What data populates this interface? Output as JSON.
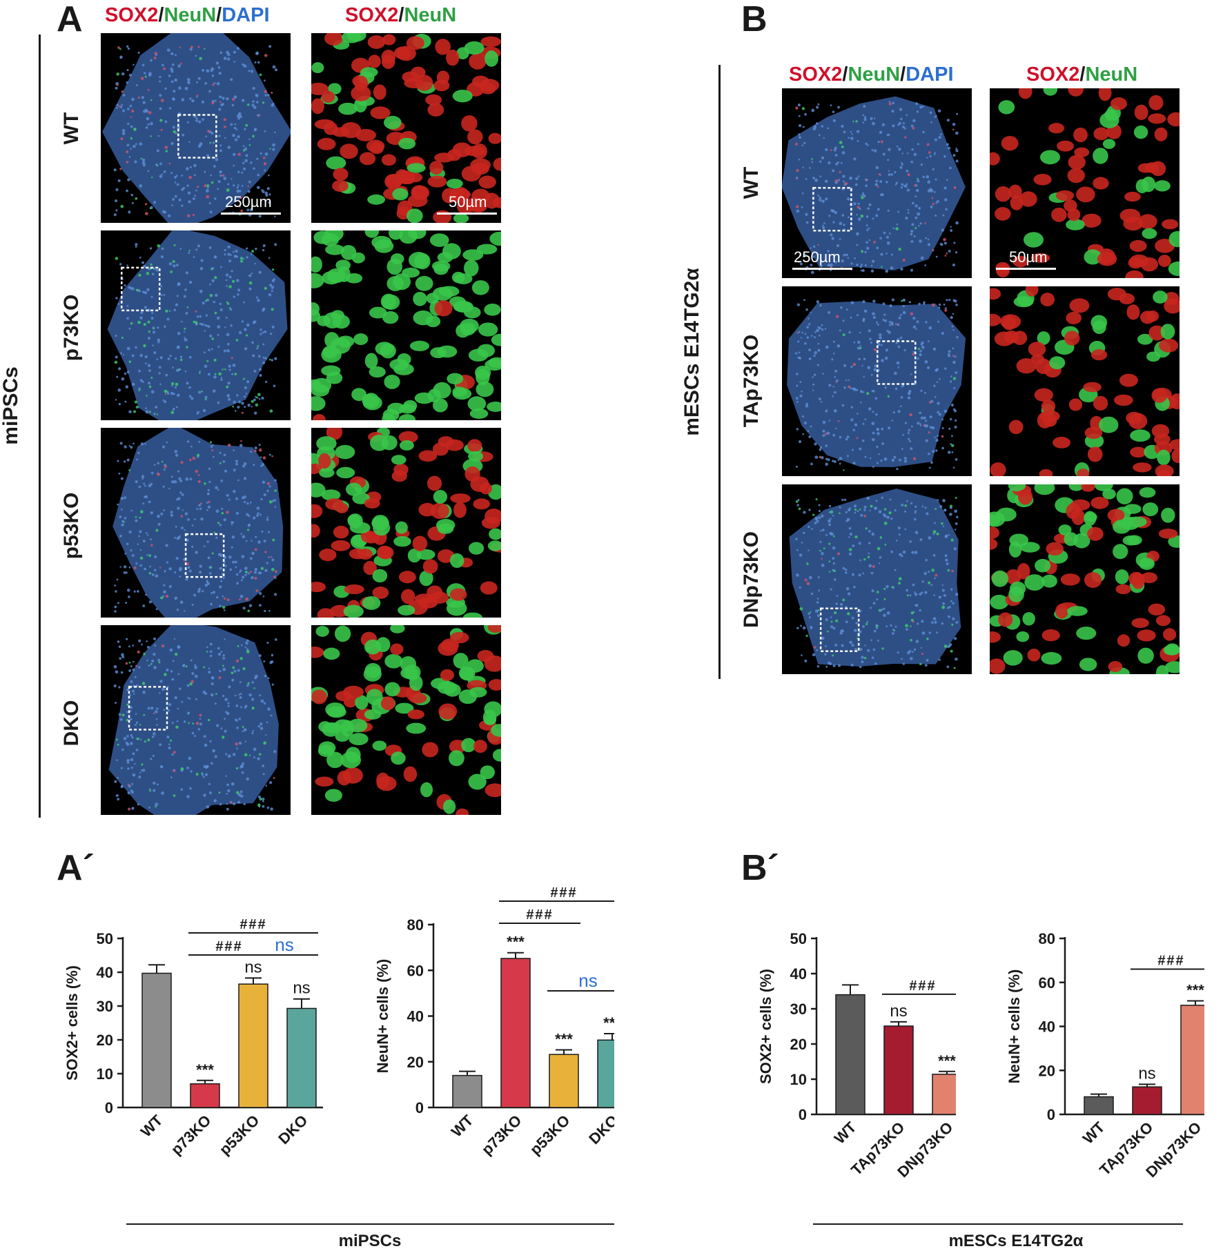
{
  "panelA": {
    "letter": "A",
    "header_left": {
      "sox2": "SOX2",
      "sep1": "/",
      "neun": "NeuN",
      "sep2": "/",
      "dapi": "DAPI"
    },
    "header_right": {
      "sox2": "SOX2",
      "sep1": "/",
      "neun": "NeuN"
    },
    "side_label": "miPSCs",
    "rows": [
      "WT",
      "p73KO",
      "p53KO",
      "DKO"
    ],
    "scale_left": "250µm",
    "scale_right": "50µm"
  },
  "panelB": {
    "letter": "B",
    "header_left": {
      "sox2": "SOX2",
      "sep1": "/",
      "neun": "NeuN",
      "sep2": "/",
      "dapi": "DAPI"
    },
    "header_right": {
      "sox2": "SOX2",
      "sep1": "/",
      "neun": "NeuN"
    },
    "side_label": "mESCs E14TG2α",
    "rows": [
      "WT",
      "TAp73KO",
      "DNp73KO"
    ],
    "scale_left": "250µm",
    "scale_right": "50µm"
  },
  "panelA2": {
    "letter": "A´",
    "group_label": "miPSCs"
  },
  "panelB2": {
    "letter": "B´",
    "group_label": "mESCs E14TG2α"
  },
  "colors": {
    "gray": "#8c8c8c",
    "red": "#d63a4a",
    "orange": "#e8b23a",
    "teal": "#5aa59c",
    "darkgray": "#5b5b5b",
    "darkred": "#a51c30",
    "salmon": "#e0826e",
    "ns_blue": "#2c6fd1"
  },
  "chart_data": [
    {
      "type": "bar",
      "categories": [
        "WT",
        "p73KO",
        "p53KO",
        "DKO"
      ],
      "values": [
        39.7,
        7.0,
        36.5,
        29.3
      ],
      "errors": [
        2.5,
        1.0,
        1.8,
        2.8
      ],
      "ylabel": "SOX2+ cells (%)",
      "ylim": [
        0,
        50
      ],
      "yticks": [
        0,
        10,
        20,
        30,
        40,
        50
      ],
      "annotations": [
        "",
        "***",
        "ns",
        "ns"
      ],
      "brackets": [
        {
          "label": "###",
          "level": 1
        },
        {
          "label": "###",
          "level": 2
        },
        {
          "label": "ns",
          "level": 3
        }
      ]
    },
    {
      "type": "bar",
      "categories": [
        "WT",
        "p73KO",
        "p53KO",
        "DKO"
      ],
      "values": [
        14.0,
        65.2,
        23.2,
        29.5
      ],
      "errors": [
        1.8,
        2.5,
        2.0,
        2.8
      ],
      "ylabel": "NeuN+ cells (%)",
      "ylim": [
        0,
        80
      ],
      "yticks": [
        0,
        20,
        40,
        60,
        80
      ],
      "annotations": [
        "",
        "***",
        "***",
        "***"
      ],
      "brackets": [
        {
          "label": "###",
          "level": 1
        },
        {
          "label": "###",
          "level": 2
        },
        {
          "label": "ns",
          "level": 3
        }
      ]
    },
    {
      "type": "bar",
      "categories": [
        "WT",
        "TAp73KO",
        "DNp73KO"
      ],
      "values": [
        34.0,
        25.1,
        11.4
      ],
      "errors": [
        2.8,
        1.2,
        0.8
      ],
      "ylabel": "SOX2+ cells (%)",
      "ylim": [
        0,
        50
      ],
      "yticks": [
        0,
        10,
        20,
        30,
        40,
        50
      ],
      "annotations": [
        "",
        "ns",
        "***"
      ],
      "brackets": [
        {
          "label": "###",
          "level": 1
        }
      ]
    },
    {
      "type": "bar",
      "categories": [
        "WT",
        "TAp73KO",
        "DNp73KO"
      ],
      "values": [
        8.0,
        12.5,
        49.6
      ],
      "errors": [
        1.2,
        1.2,
        2.0
      ],
      "ylabel": "NeuN+ cells (%)",
      "ylim": [
        0,
        80
      ],
      "yticks": [
        0,
        20,
        40,
        60,
        80
      ],
      "annotations": [
        "",
        "ns",
        "***"
      ],
      "brackets": [
        {
          "label": "###",
          "level": 1
        }
      ]
    }
  ]
}
